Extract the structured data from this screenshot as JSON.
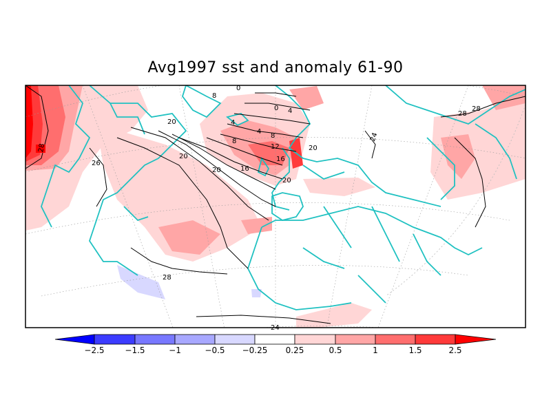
{
  "title": "Avg1997 sst and anomaly 61-90",
  "colorbar": {
    "labels": [
      "-2.5",
      "-1.5",
      "-1",
      "-0.5",
      "-0.25",
      "0.25",
      "0.5",
      "1",
      "1.5",
      "2.5"
    ],
    "colors": [
      "#0000ff",
      "#3c3cff",
      "#7878ff",
      "#a8a8ff",
      "#d8d8ff",
      "#ffffff",
      "#ffd6d6",
      "#ffa6a6",
      "#ff6e6e",
      "#ff3a3a",
      "#ff0000"
    ]
  },
  "contour_labels": {
    "c28_w": "28",
    "c28_e": "28",
    "c28_s": "28",
    "c26": "26",
    "c24_s": "24",
    "c24_e": "24",
    "c20_nw": "20",
    "c20_a": "20",
    "c20_b": "20",
    "c20_c": "20",
    "c20_d": "20",
    "c16_a": "16",
    "c16_b": "16",
    "c12": "12",
    "c8_a": "8",
    "c8_b": "8",
    "c8_c": "8",
    "c4_a": "4",
    "c4_b": "4",
    "c4_c": "4",
    "c0_a": "0",
    "c0_b": "0"
  },
  "colors": {
    "coast": "#1fc1c1",
    "frame": "#000000",
    "grid": "#999999"
  }
}
